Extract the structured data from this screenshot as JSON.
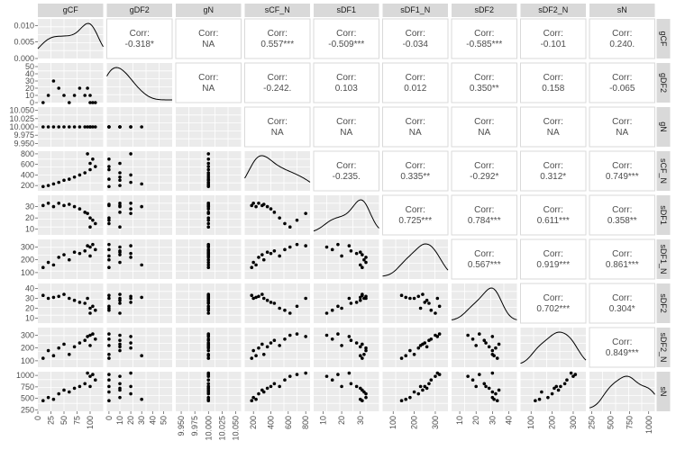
{
  "chart_data": {
    "type": "scatter",
    "kind": "pairs-plot-matrix",
    "variables": [
      "gCF",
      "gDF2",
      "gN",
      "sCF_N",
      "sDF1",
      "sDF1_N",
      "sDF2",
      "sDF2_N",
      "sN"
    ],
    "corr_prefix": "Corr:",
    "correlations": [
      {
        "row": "gCF",
        "col": "gDF2",
        "text": "-0.318*"
      },
      {
        "row": "gCF",
        "col": "gN",
        "text": "NA"
      },
      {
        "row": "gCF",
        "col": "sCF_N",
        "text": "0.557***"
      },
      {
        "row": "gCF",
        "col": "sDF1",
        "text": "-0.509***"
      },
      {
        "row": "gCF",
        "col": "sDF1_N",
        "text": "-0.034"
      },
      {
        "row": "gCF",
        "col": "sDF2",
        "text": "-0.585***"
      },
      {
        "row": "gCF",
        "col": "sDF2_N",
        "text": "-0.101"
      },
      {
        "row": "gCF",
        "col": "sN",
        "text": "0.240."
      },
      {
        "row": "gDF2",
        "col": "gN",
        "text": "NA"
      },
      {
        "row": "gDF2",
        "col": "sCF_N",
        "text": "-0.242."
      },
      {
        "row": "gDF2",
        "col": "sDF1",
        "text": "0.103"
      },
      {
        "row": "gDF2",
        "col": "sDF1_N",
        "text": "0.012"
      },
      {
        "row": "gDF2",
        "col": "sDF2",
        "text": "0.350**"
      },
      {
        "row": "gDF2",
        "col": "sDF2_N",
        "text": "0.158"
      },
      {
        "row": "gDF2",
        "col": "sN",
        "text": "-0.065"
      },
      {
        "row": "gN",
        "col": "sCF_N",
        "text": "NA"
      },
      {
        "row": "gN",
        "col": "sDF1",
        "text": "NA"
      },
      {
        "row": "gN",
        "col": "sDF1_N",
        "text": "NA"
      },
      {
        "row": "gN",
        "col": "sDF2",
        "text": "NA"
      },
      {
        "row": "gN",
        "col": "sDF2_N",
        "text": "NA"
      },
      {
        "row": "gN",
        "col": "sN",
        "text": "NA"
      },
      {
        "row": "sCF_N",
        "col": "sDF1",
        "text": "-0.235."
      },
      {
        "row": "sCF_N",
        "col": "sDF1_N",
        "text": "0.335**"
      },
      {
        "row": "sCF_N",
        "col": "sDF2",
        "text": "-0.292*"
      },
      {
        "row": "sCF_N",
        "col": "sDF2_N",
        "text": "0.312*"
      },
      {
        "row": "sCF_N",
        "col": "sN",
        "text": "0.749***"
      },
      {
        "row": "sDF1",
        "col": "sDF1_N",
        "text": "0.725***"
      },
      {
        "row": "sDF1",
        "col": "sDF2",
        "text": "0.784***"
      },
      {
        "row": "sDF1",
        "col": "sDF2_N",
        "text": "0.611***"
      },
      {
        "row": "sDF1",
        "col": "sN",
        "text": "0.358**"
      },
      {
        "row": "sDF1_N",
        "col": "sDF2",
        "text": "0.567***"
      },
      {
        "row": "sDF1_N",
        "col": "sDF2_N",
        "text": "0.919***"
      },
      {
        "row": "sDF1_N",
        "col": "sN",
        "text": "0.861***"
      },
      {
        "row": "sDF2",
        "col": "sDF2_N",
        "text": "0.702***"
      },
      {
        "row": "sDF2",
        "col": "sN",
        "text": "0.304*"
      },
      {
        "row": "sDF2_N",
        "col": "sN",
        "text": "0.849***"
      }
    ],
    "row_axes": [
      {
        "var": "gCF",
        "range": [
          0,
          0.012
        ],
        "tick_labels": [
          "0.010",
          "0.005",
          "0.000"
        ],
        "tick_values": [
          0.01,
          0.005,
          0.0
        ]
      },
      {
        "var": "gDF2",
        "range": [
          0,
          55
        ],
        "tick_labels": [
          "50",
          "40",
          "30",
          "20",
          "10",
          "0"
        ],
        "tick_values": [
          50,
          40,
          30,
          20,
          10,
          0
        ]
      },
      {
        "var": "gN",
        "range": [
          9.94,
          10.06
        ],
        "tick_labels": [
          "10.050",
          "10.025",
          "10.000",
          "9.975",
          "9.950"
        ],
        "tick_values": [
          10.05,
          10.025,
          10.0,
          9.975,
          9.95
        ]
      },
      {
        "var": "sCF_N",
        "range": [
          100,
          850
        ],
        "tick_labels": [
          "800",
          "600",
          "400",
          "200"
        ],
        "tick_values": [
          800,
          600,
          400,
          200
        ]
      },
      {
        "var": "sDF1",
        "range": [
          5,
          40
        ],
        "tick_labels": [
          "30",
          "20",
          "10"
        ],
        "tick_values": [
          30,
          20,
          10
        ]
      },
      {
        "var": "sDF1_N",
        "range": [
          50,
          360
        ],
        "tick_labels": [
          "300",
          "200",
          "100"
        ],
        "tick_values": [
          300,
          200,
          100
        ]
      },
      {
        "var": "sDF2",
        "range": [
          5,
          45
        ],
        "tick_labels": [
          "40",
          "30",
          "20",
          "10"
        ],
        "tick_values": [
          40,
          30,
          20,
          10
        ]
      },
      {
        "var": "sDF2_N",
        "range": [
          50,
          360
        ],
        "tick_labels": [
          "300",
          "200",
          "100"
        ],
        "tick_values": [
          300,
          200,
          100
        ]
      },
      {
        "var": "sN",
        "range": [
          220,
          1080
        ],
        "tick_labels": [
          "1000",
          "750",
          "500",
          "250"
        ],
        "tick_values": [
          1000,
          750,
          500,
          250
        ]
      }
    ],
    "col_axes": [
      {
        "var": "gCF",
        "range": [
          0,
          125
        ],
        "tick_labels": [
          "0",
          "25",
          "50",
          "75",
          "100"
        ],
        "tick_values": [
          0,
          25,
          50,
          75,
          100
        ]
      },
      {
        "var": "gDF2",
        "range": [
          -2,
          58
        ],
        "tick_labels": [
          "0",
          "10",
          "20",
          "30",
          "40",
          "50"
        ],
        "tick_values": [
          0,
          10,
          20,
          30,
          40,
          50
        ]
      },
      {
        "var": "gN",
        "range": [
          9.94,
          10.06
        ],
        "tick_labels": [
          "9.950",
          "9.975",
          "10.000",
          "10.025",
          "10.050"
        ],
        "tick_values": [
          9.95,
          9.975,
          10.0,
          10.025,
          10.05
        ]
      },
      {
        "var": "sCF_N",
        "range": [
          100,
          850
        ],
        "tick_labels": [
          "200",
          "400",
          "600",
          "800"
        ],
        "tick_values": [
          200,
          400,
          600,
          800
        ]
      },
      {
        "var": "sDF1",
        "range": [
          5,
          40
        ],
        "tick_labels": [
          "10",
          "20",
          "30"
        ],
        "tick_values": [
          10,
          20,
          30
        ]
      },
      {
        "var": "sDF1_N",
        "range": [
          50,
          360
        ],
        "tick_labels": [
          "100",
          "200",
          "300"
        ],
        "tick_values": [
          100,
          200,
          300
        ]
      },
      {
        "var": "sDF2",
        "range": [
          5,
          45
        ],
        "tick_labels": [
          "10",
          "20",
          "30",
          "40"
        ],
        "tick_values": [
          10,
          20,
          30,
          40
        ]
      },
      {
        "var": "sDF2_N",
        "range": [
          50,
          360
        ],
        "tick_labels": [
          "100",
          "200",
          "300"
        ],
        "tick_values": [
          100,
          200,
          300
        ]
      },
      {
        "var": "sN",
        "range": [
          220,
          1080
        ],
        "tick_labels": [
          "250",
          "500",
          "750",
          "1000"
        ],
        "tick_values": [
          250,
          500,
          750,
          1000
        ]
      }
    ],
    "observations": [
      {
        "gCF": 10,
        "gDF2": 0,
        "gN": 10,
        "sCF_N": 180,
        "sDF1": 31,
        "sDF1_N": 140,
        "sDF2": 33,
        "sDF2_N": 120,
        "sN": 450
      },
      {
        "gCF": 20,
        "gDF2": 10,
        "gN": 10,
        "sCF_N": 200,
        "sDF1": 33,
        "sDF1_N": 180,
        "sDF2": 30,
        "sDF2_N": 180,
        "sN": 520
      },
      {
        "gCF": 30,
        "gDF2": 30,
        "gN": 10,
        "sCF_N": 230,
        "sDF1": 30,
        "sDF1_N": 160,
        "sDF2": 31,
        "sDF2_N": 140,
        "sN": 480
      },
      {
        "gCF": 40,
        "gDF2": 20,
        "gN": 10,
        "sCF_N": 260,
        "sDF1": 33,
        "sDF1_N": 220,
        "sDF2": 32,
        "sDF2_N": 200,
        "sN": 600
      },
      {
        "gCF": 50,
        "gDF2": 10,
        "gN": 10,
        "sCF_N": 300,
        "sDF1": 31,
        "sDF1_N": 240,
        "sDF2": 34,
        "sDF2_N": 230,
        "sN": 680
      },
      {
        "gCF": 60,
        "gDF2": 0,
        "gN": 10,
        "sCF_N": 320,
        "sDF1": 32,
        "sDF1_N": 200,
        "sDF2": 30,
        "sDF2_N": 150,
        "sN": 640
      },
      {
        "gCF": 70,
        "gDF2": 10,
        "gN": 10,
        "sCF_N": 360,
        "sDF1": 30,
        "sDF1_N": 260,
        "sDF2": 28,
        "sDF2_N": 210,
        "sN": 720
      },
      {
        "gCF": 80,
        "gDF2": 20,
        "gN": 10,
        "sCF_N": 400,
        "sDF1": 28,
        "sDF1_N": 250,
        "sDF2": 26,
        "sDF2_N": 240,
        "sN": 760
      },
      {
        "gCF": 90,
        "gDF2": 10,
        "gN": 10,
        "sCF_N": 440,
        "sDF1": 25,
        "sDF1_N": 270,
        "sDF2": 25,
        "sDF2_N": 260,
        "sN": 820
      },
      {
        "gCF": 100,
        "gDF2": 0,
        "gN": 10,
        "sCF_N": 500,
        "sDF1": 20,
        "sDF1_N": 230,
        "sDF2": 20,
        "sDF2_N": 220,
        "sN": 760
      },
      {
        "gCF": 110,
        "gDF2": 0,
        "gN": 10,
        "sCF_N": 560,
        "sDF1": 15,
        "sDF1_N": 280,
        "sDF2": 18,
        "sDF2_N": 270,
        "sN": 900
      },
      {
        "gCF": 100,
        "gDF2": 10,
        "gN": 10,
        "sCF_N": 620,
        "sDF1": 12,
        "sDF1_N": 300,
        "sDF2": 15,
        "sDF2_N": 300,
        "sN": 980
      },
      {
        "gCF": 105,
        "gDF2": 0,
        "gN": 10,
        "sCF_N": 700,
        "sDF1": 18,
        "sDF1_N": 320,
        "sDF2": 22,
        "sDF2_N": 310,
        "sN": 1020
      },
      {
        "gCF": 95,
        "gDF2": 20,
        "gN": 10,
        "sCF_N": 800,
        "sDF1": 24,
        "sDF1_N": 310,
        "sDF2": 30,
        "sDF2_N": 290,
        "sN": 1050
      }
    ]
  }
}
